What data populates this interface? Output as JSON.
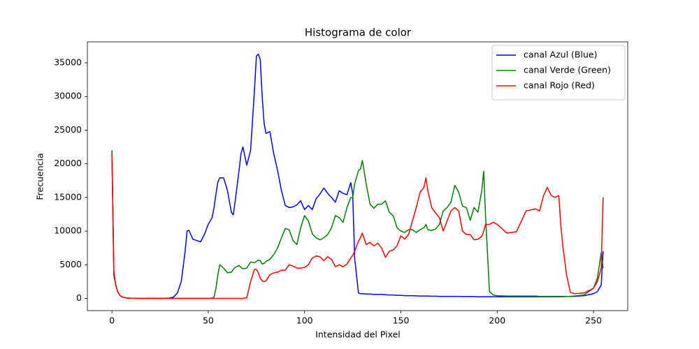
{
  "chart_data": {
    "type": "line",
    "title": "Histograma de color",
    "x_label": "Intensidad del Pixel",
    "y_label": "Frecuencia",
    "x": [
      0,
      1,
      2,
      3,
      4,
      5,
      6,
      8,
      10,
      15,
      20,
      25,
      30,
      32,
      34,
      36,
      38,
      39,
      40,
      42,
      44,
      46,
      48,
      50,
      52,
      53,
      54,
      55,
      56,
      58,
      60,
      62,
      63,
      64,
      66,
      67,
      68,
      70,
      72,
      74,
      75,
      76,
      77,
      78,
      79,
      80,
      82,
      84,
      86,
      88,
      90,
      92,
      94,
      96,
      98,
      100,
      102,
      104,
      106,
      108,
      110,
      112,
      114,
      116,
      118,
      120,
      122,
      124,
      125,
      126,
      128,
      129,
      130,
      132,
      134,
      136,
      138,
      140,
      142,
      144,
      146,
      148,
      150,
      152,
      154,
      156,
      158,
      160,
      162,
      163,
      164,
      166,
      168,
      170,
      172,
      174,
      176,
      178,
      180,
      182,
      184,
      186,
      188,
      190,
      192,
      193,
      194,
      196,
      198,
      200,
      205,
      210,
      215,
      220,
      222,
      224,
      226,
      228,
      230,
      232,
      233,
      234,
      236,
      238,
      240,
      245,
      250,
      252,
      254,
      255
    ],
    "series": [
      {
        "name": "canal Azul (Blue)",
        "color": "#0000ff",
        "values": [
          21800,
          4000,
          2000,
          1000,
          500,
          250,
          150,
          50,
          20,
          0,
          0,
          0,
          50,
          200,
          800,
          2500,
          7000,
          10000,
          10100,
          8800,
          8600,
          8400,
          9500,
          11000,
          12000,
          13500,
          15500,
          17300,
          17900,
          17900,
          16000,
          12800,
          12400,
          14500,
          19000,
          21500,
          22500,
          19800,
          22000,
          31000,
          36000,
          36300,
          35500,
          30000,
          26000,
          24500,
          24800,
          21500,
          19000,
          16000,
          13800,
          13500,
          13600,
          13900,
          14500,
          13200,
          13800,
          13200,
          14800,
          15500,
          16400,
          15600,
          15000,
          14300,
          16000,
          15600,
          15400,
          17200,
          15500,
          6000,
          800,
          700,
          700,
          650,
          650,
          600,
          600,
          600,
          550,
          500,
          500,
          450,
          450,
          400,
          400,
          400,
          380,
          350,
          350,
          350,
          350,
          330,
          320,
          300,
          300,
          300,
          300,
          300,
          300,
          280,
          280,
          280,
          270,
          250,
          250,
          250,
          250,
          250,
          250,
          250,
          250,
          250,
          250,
          250,
          250,
          250,
          250,
          250,
          250,
          250,
          250,
          250,
          280,
          280,
          300,
          400,
          700,
          1000,
          2000,
          7000
        ]
      },
      {
        "name": "canal Verde (Green)",
        "color": "#008000",
        "values": [
          22000,
          3500,
          2000,
          1000,
          500,
          250,
          150,
          50,
          20,
          0,
          0,
          0,
          0,
          0,
          0,
          0,
          0,
          0,
          0,
          0,
          0,
          0,
          0,
          0,
          50,
          200,
          1500,
          3500,
          5000,
          4500,
          3800,
          3900,
          4300,
          4600,
          4900,
          4600,
          4400,
          4500,
          5400,
          5300,
          5500,
          5700,
          5600,
          5100,
          5200,
          5500,
          5800,
          6500,
          7500,
          9000,
          10400,
          10200,
          8600,
          8000,
          10500,
          12300,
          11500,
          9600,
          9000,
          8700,
          9000,
          9500,
          10500,
          12300,
          12000,
          11300,
          13500,
          15000,
          15000,
          17000,
          19000,
          19200,
          20500,
          17000,
          14000,
          13400,
          14000,
          14000,
          14500,
          12800,
          12300,
          10500,
          10000,
          9800,
          10200,
          10200,
          9800,
          10200,
          10500,
          11000,
          10200,
          10100,
          10300,
          11000,
          13000,
          13500,
          14300,
          16800,
          15800,
          13700,
          13500,
          11600,
          13500,
          12800,
          16000,
          18900,
          12000,
          1000,
          500,
          400,
          350,
          350,
          350,
          350,
          300,
          300,
          300,
          300,
          300,
          300,
          300,
          300,
          300,
          300,
          350,
          500,
          1500,
          3000,
          6800,
          4500
        ]
      },
      {
        "name": "canal Rojo (Red)",
        "color": "#ff0000",
        "values": [
          21500,
          3500,
          2000,
          1000,
          500,
          250,
          150,
          50,
          20,
          0,
          0,
          0,
          0,
          0,
          0,
          0,
          0,
          0,
          0,
          0,
          0,
          0,
          0,
          0,
          0,
          0,
          0,
          0,
          0,
          0,
          0,
          0,
          0,
          0,
          0,
          0,
          0,
          100,
          2500,
          4300,
          4300,
          3800,
          3000,
          2600,
          2500,
          2600,
          3500,
          3800,
          3900,
          4200,
          4200,
          5000,
          4800,
          4500,
          4500,
          4600,
          5000,
          6000,
          6300,
          6200,
          5600,
          6200,
          5800,
          4700,
          5000,
          4700,
          5100,
          6000,
          6400,
          7000,
          8500,
          9000,
          9700,
          8000,
          8300,
          7800,
          8200,
          7500,
          6100,
          7000,
          7200,
          7800,
          9300,
          8800,
          9500,
          11500,
          13500,
          15800,
          16500,
          17900,
          16000,
          13500,
          12700,
          12000,
          10000,
          11500,
          13000,
          13500,
          13000,
          10000,
          9500,
          9500,
          8700,
          8800,
          9200,
          10000,
          11000,
          11000,
          11300,
          11000,
          9700,
          9900,
          13000,
          13300,
          13000,
          15200,
          16500,
          15300,
          15000,
          15300,
          11000,
          8000,
          3500,
          900,
          700,
          800,
          1500,
          2500,
          4500,
          15000
        ]
      }
    ],
    "xlim": [
      -12.75,
      267.75
    ],
    "ylim": [
      -1815,
      38115
    ],
    "xticks": [
      0,
      50,
      100,
      150,
      200,
      250
    ],
    "yticks": [
      0,
      5000,
      10000,
      15000,
      20000,
      25000,
      30000,
      35000
    ],
    "grid": false,
    "legend": "upper right"
  }
}
